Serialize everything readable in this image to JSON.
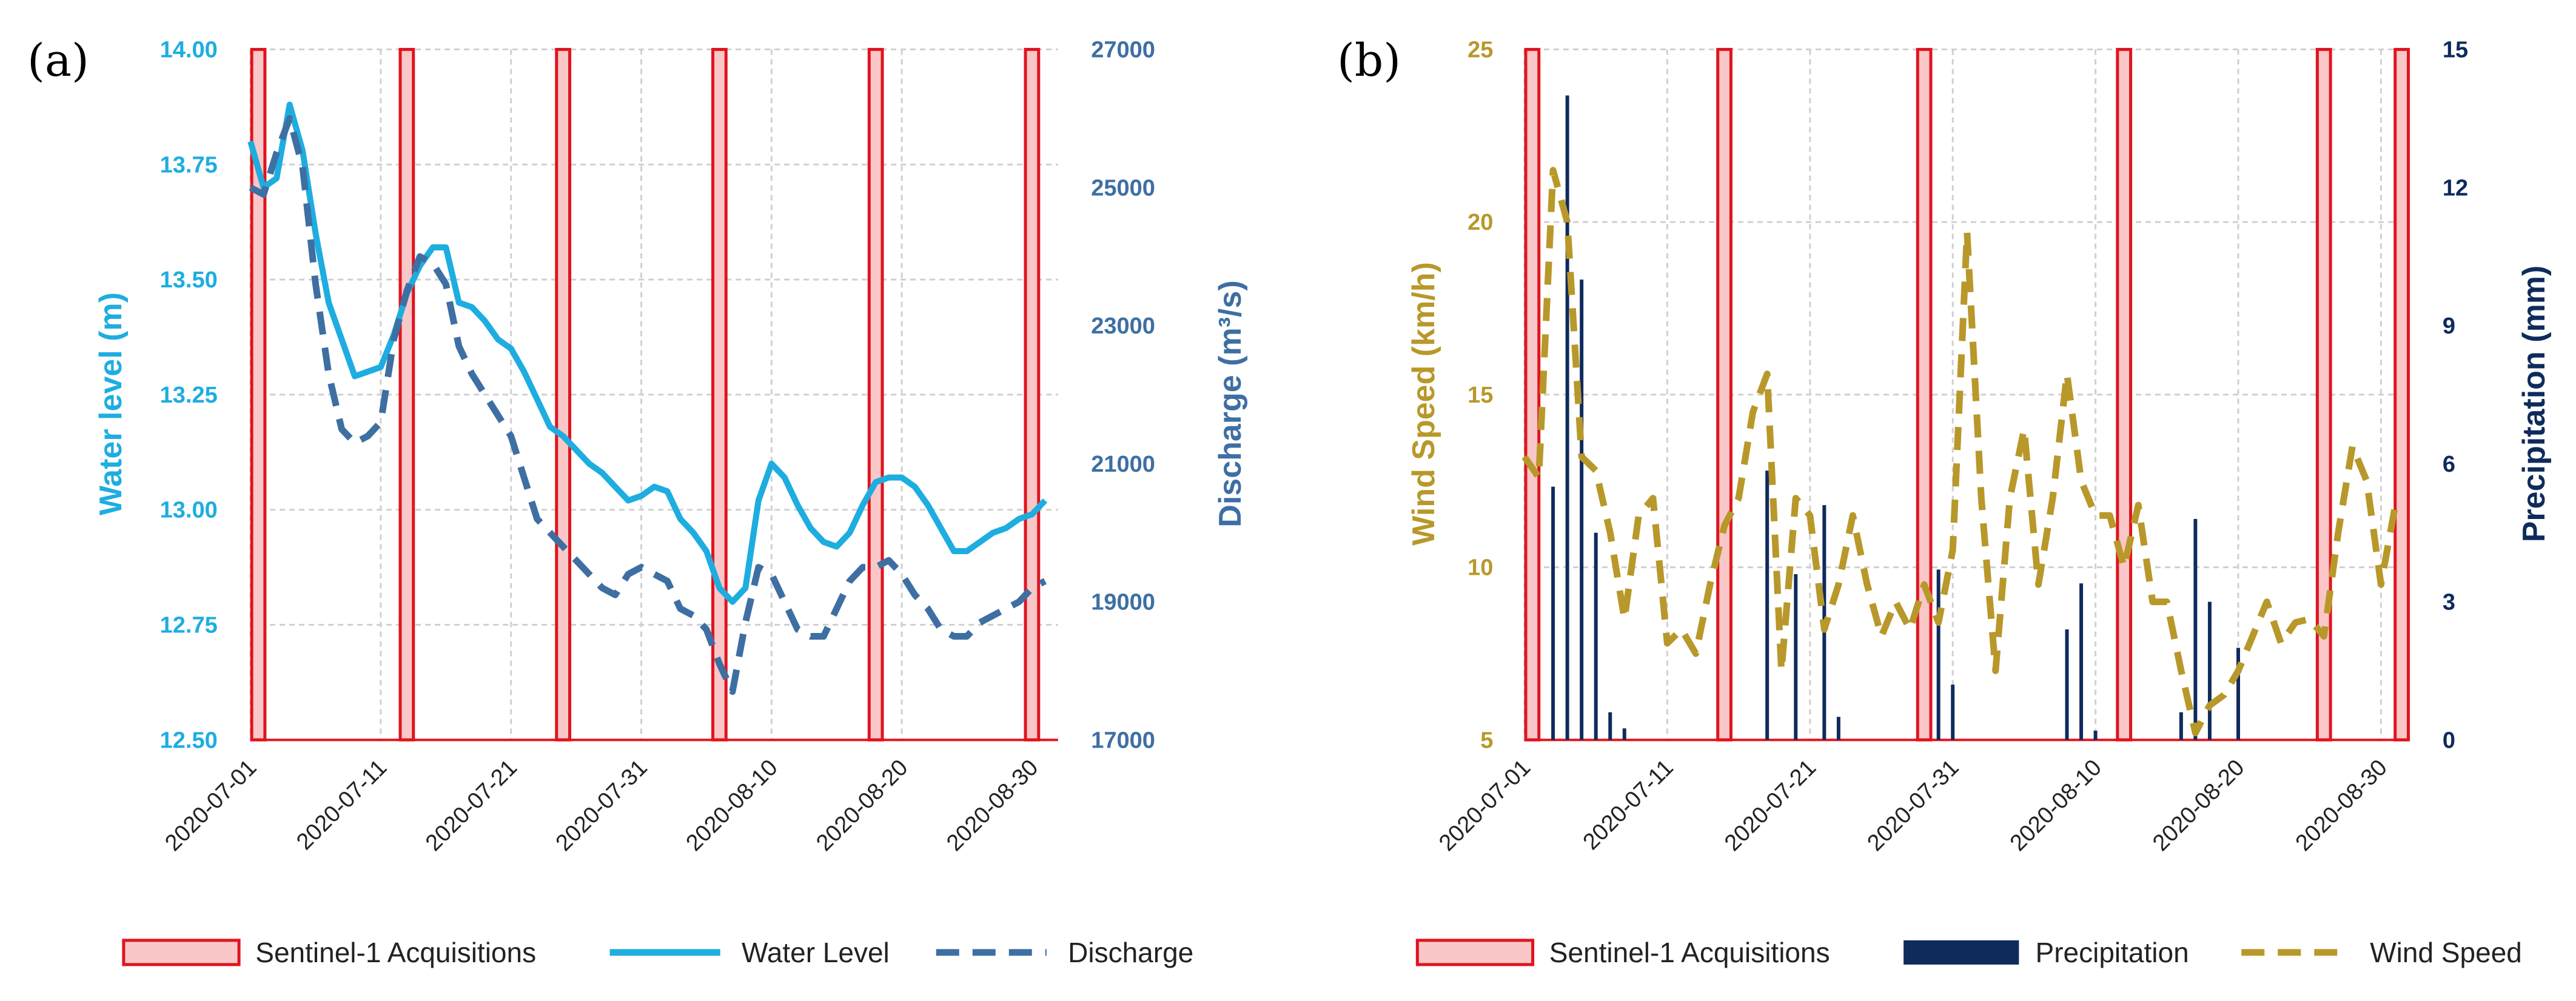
{
  "chart_data": [
    {
      "panel_label": "(a)",
      "type": "line",
      "x_dates": [
        "2020-07-01",
        "2020-07-11",
        "2020-07-21",
        "2020-07-31",
        "2020-08-10",
        "2020-08-20",
        "2020-08-30"
      ],
      "xlim": [
        "2020-07-01",
        "2020-09-01"
      ],
      "y_left": {
        "label": "Water level (m)",
        "ticks": [
          "12.50",
          "12.75",
          "13.00",
          "13.25",
          "13.50",
          "13.75",
          "14.00"
        ],
        "ylim": [
          12.5,
          14.0
        ],
        "color": "#1EADE0"
      },
      "y_right": {
        "label": "Discharge (m³/s)",
        "ticks": [
          "17000",
          "19000",
          "21000",
          "23000",
          "25000",
          "27000"
        ],
        "ylim": [
          17000,
          27000
        ],
        "color": "#3E6FA3"
      },
      "acquisitions": [
        "2020-07-01",
        "2020-07-13",
        "2020-07-25",
        "2020-08-06",
        "2020-08-18",
        "2020-08-30"
      ],
      "series": [
        {
          "name": "Water Level",
          "axis": "left",
          "style": "solid",
          "color": "#1EADE0",
          "x": [
            "2020-07-01",
            "2020-07-02",
            "2020-07-03",
            "2020-07-04",
            "2020-07-05",
            "2020-07-06",
            "2020-07-07",
            "2020-07-08",
            "2020-07-09",
            "2020-07-10",
            "2020-07-11",
            "2020-07-12",
            "2020-07-13",
            "2020-07-14",
            "2020-07-15",
            "2020-07-16",
            "2020-07-17",
            "2020-07-18",
            "2020-07-19",
            "2020-07-20",
            "2020-07-21",
            "2020-07-22",
            "2020-07-23",
            "2020-07-24",
            "2020-07-25",
            "2020-07-26",
            "2020-07-27",
            "2020-07-28",
            "2020-07-29",
            "2020-07-30",
            "2020-07-31",
            "2020-08-01",
            "2020-08-02",
            "2020-08-03",
            "2020-08-04",
            "2020-08-05",
            "2020-08-06",
            "2020-08-07",
            "2020-08-08",
            "2020-08-09",
            "2020-08-10",
            "2020-08-11",
            "2020-08-12",
            "2020-08-13",
            "2020-08-14",
            "2020-08-15",
            "2020-08-16",
            "2020-08-17",
            "2020-08-18",
            "2020-08-19",
            "2020-08-20",
            "2020-08-21",
            "2020-08-22",
            "2020-08-23",
            "2020-08-24",
            "2020-08-25",
            "2020-08-26",
            "2020-08-27",
            "2020-08-28",
            "2020-08-29",
            "2020-08-30",
            "2020-08-31"
          ],
          "y": [
            13.8,
            13.7,
            13.72,
            13.88,
            13.78,
            13.6,
            13.45,
            13.37,
            13.29,
            13.3,
            13.31,
            13.38,
            13.47,
            13.53,
            13.57,
            13.57,
            13.45,
            13.44,
            13.41,
            13.37,
            13.35,
            13.3,
            13.24,
            13.18,
            13.16,
            13.13,
            13.1,
            13.08,
            13.05,
            13.02,
            13.03,
            13.05,
            13.04,
            12.98,
            12.95,
            12.91,
            12.83,
            12.8,
            12.83,
            13.02,
            13.1,
            13.07,
            13.01,
            12.96,
            12.93,
            12.92,
            12.95,
            13.01,
            13.06,
            13.07,
            13.07,
            13.05,
            13.01,
            12.96,
            12.91,
            12.91,
            12.93,
            12.95,
            12.96,
            12.98,
            12.99,
            13.02
          ]
        },
        {
          "name": "Discharge",
          "axis": "right",
          "style": "dashed",
          "color": "#3E6FA3",
          "x": [
            "2020-07-01",
            "2020-07-02",
            "2020-07-03",
            "2020-07-04",
            "2020-07-05",
            "2020-07-06",
            "2020-07-07",
            "2020-07-08",
            "2020-07-09",
            "2020-07-10",
            "2020-07-11",
            "2020-07-12",
            "2020-07-13",
            "2020-07-14",
            "2020-07-15",
            "2020-07-16",
            "2020-07-17",
            "2020-07-18",
            "2020-07-19",
            "2020-07-20",
            "2020-07-21",
            "2020-07-22",
            "2020-07-23",
            "2020-07-24",
            "2020-07-25",
            "2020-07-26",
            "2020-07-27",
            "2020-07-28",
            "2020-07-29",
            "2020-07-30",
            "2020-07-31",
            "2020-08-01",
            "2020-08-02",
            "2020-08-03",
            "2020-08-04",
            "2020-08-05",
            "2020-08-06",
            "2020-08-07",
            "2020-08-08",
            "2020-08-09",
            "2020-08-10",
            "2020-08-11",
            "2020-08-12",
            "2020-08-13",
            "2020-08-14",
            "2020-08-15",
            "2020-08-16",
            "2020-08-17",
            "2020-08-18",
            "2020-08-19",
            "2020-08-20",
            "2020-08-21",
            "2020-08-22",
            "2020-08-23",
            "2020-08-24",
            "2020-08-25",
            "2020-08-26",
            "2020-08-27",
            "2020-08-28",
            "2020-08-29",
            "2020-08-30",
            "2020-08-31"
          ],
          "y": [
            25000,
            24900,
            25500,
            26000,
            25300,
            23600,
            22300,
            21500,
            21300,
            21400,
            21600,
            22800,
            23500,
            24000,
            23900,
            23600,
            22700,
            22300,
            22000,
            21700,
            21400,
            20800,
            20200,
            20000,
            19800,
            19600,
            19400,
            19200,
            19100,
            19400,
            19500,
            19400,
            19300,
            18900,
            18800,
            18600,
            18100,
            17700,
            18700,
            19500,
            19400,
            19000,
            18600,
            18500,
            18500,
            18900,
            19300,
            19500,
            19500,
            19600,
            19400,
            19100,
            18900,
            18600,
            18500,
            18500,
            18700,
            18800,
            18900,
            19000,
            19200,
            19300
          ]
        }
      ]
    },
    {
      "panel_label": "(b)",
      "type": "line",
      "x_dates": [
        "2020-07-01",
        "2020-07-11",
        "2020-07-21",
        "2020-07-31",
        "2020-08-10",
        "2020-08-20",
        "2020-08-30"
      ],
      "xlim": [
        "2020-07-01",
        "2020-09-01"
      ],
      "y_left": {
        "label": "Wind Speed (km/h)",
        "ticks": [
          "5",
          "10",
          "15",
          "20",
          "25"
        ],
        "ylim": [
          5,
          25
        ],
        "color": "#B8982A"
      },
      "y_right": {
        "label": "Precipitation (mm)",
        "ticks": [
          "0",
          "3",
          "6",
          "9",
          "12",
          "15"
        ],
        "ylim": [
          0,
          15
        ],
        "color": "#0F2B5C"
      },
      "acquisitions": [
        "2020-07-01",
        "2020-07-15",
        "2020-07-29",
        "2020-08-12",
        "2020-08-26",
        "2020-09-09"
      ],
      "series": [
        {
          "name": "Precipitation",
          "axis": "right",
          "style": "bar",
          "color": "#0F2B5C",
          "x": [
            "2020-07-03",
            "2020-07-04",
            "2020-07-05",
            "2020-07-06",
            "2020-07-07",
            "2020-07-08",
            "2020-07-09",
            "2020-07-18",
            "2020-07-20",
            "2020-07-22",
            "2020-07-23",
            "2020-07-24",
            "2020-07-30",
            "2020-07-31",
            "2020-08-08",
            "2020-08-09",
            "2020-08-10",
            "2020-08-16",
            "2020-08-17",
            "2020-08-18",
            "2020-08-20"
          ],
          "y": [
            5.5,
            14.0,
            10.0,
            4.5,
            0.6,
            0.25,
            0.0,
            5.85,
            3.6,
            5.1,
            0.5,
            0.0,
            3.7,
            1.2,
            2.4,
            3.4,
            0.2,
            0.6,
            4.8,
            3.0,
            2.0
          ]
        },
        {
          "name": "Wind Speed",
          "axis": "left",
          "style": "dashed",
          "color": "#B8982A",
          "x": [
            "2020-07-01",
            "2020-07-02",
            "2020-07-03",
            "2020-07-04",
            "2020-07-05",
            "2020-07-06",
            "2020-07-07",
            "2020-07-08",
            "2020-07-09",
            "2020-07-10",
            "2020-07-11",
            "2020-07-12",
            "2020-07-13",
            "2020-07-14",
            "2020-07-15",
            "2020-07-16",
            "2020-07-17",
            "2020-07-18",
            "2020-07-19",
            "2020-07-20",
            "2020-07-21",
            "2020-07-22",
            "2020-07-23",
            "2020-07-24",
            "2020-07-25",
            "2020-07-26",
            "2020-07-27",
            "2020-07-28",
            "2020-07-29",
            "2020-07-30",
            "2020-07-31",
            "2020-08-01",
            "2020-08-02",
            "2020-08-03",
            "2020-08-04",
            "2020-08-05",
            "2020-08-06",
            "2020-08-07",
            "2020-08-08",
            "2020-08-09",
            "2020-08-10",
            "2020-08-11",
            "2020-08-12",
            "2020-08-13",
            "2020-08-14",
            "2020-08-15",
            "2020-08-16",
            "2020-08-17",
            "2020-08-18",
            "2020-08-19",
            "2020-08-20",
            "2020-08-21",
            "2020-08-22",
            "2020-08-23",
            "2020-08-24",
            "2020-08-25",
            "2020-08-26",
            "2020-08-27",
            "2020-08-28",
            "2020-08-29",
            "2020-08-30",
            "2020-08-31"
          ],
          "y": [
            13.2,
            12.6,
            21.5,
            20.0,
            13.2,
            12.8,
            11.0,
            8.5,
            11.5,
            12.0,
            7.8,
            8.2,
            7.5,
            9.5,
            11.2,
            12.0,
            14.5,
            15.6,
            7.0,
            12.0,
            11.5,
            8.2,
            9.5,
            11.5,
            9.5,
            8.0,
            9.0,
            8.2,
            9.5,
            8.4,
            10.5,
            19.7,
            12.0,
            7.0,
            12.0,
            14.0,
            9.5,
            12.0,
            15.6,
            12.5,
            11.5,
            11.5,
            10.0,
            11.8,
            9.0,
            9.0,
            7.0,
            5.2,
            6.0,
            6.3,
            7.0,
            8.0,
            9.0,
            7.8,
            8.4,
            8.5,
            8.0,
            11.0,
            13.5,
            12.5,
            9.5,
            11.8
          ]
        }
      ]
    }
  ],
  "legend_a": [
    {
      "label": "Sentinel-1 Acquisitions",
      "kind": "rect"
    },
    {
      "label": "Water Level",
      "kind": "solid"
    },
    {
      "label": "Discharge",
      "kind": "dashed"
    }
  ],
  "legend_b": [
    {
      "label": "Sentinel-1 Acquisitions",
      "kind": "rect"
    },
    {
      "label": "Precipitation",
      "kind": "bar"
    },
    {
      "label": "Wind Speed",
      "kind": "dashed"
    }
  ],
  "colors": {
    "acquisition_fill": "#F9C7C7",
    "acquisition_stroke": "#E0141E",
    "grid": "#D0D0D0"
  }
}
